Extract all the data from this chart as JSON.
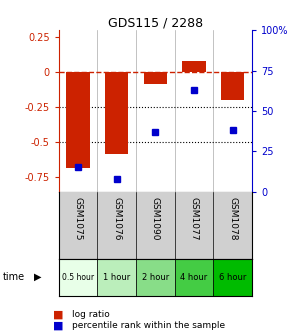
{
  "title": "GDS115 / 2288",
  "samples": [
    "GSM1075",
    "GSM1076",
    "GSM1090",
    "GSM1077",
    "GSM1078"
  ],
  "time_labels": [
    "0.5 hour",
    "1 hour",
    "2 hour",
    "4 hour",
    "6 hour"
  ],
  "time_colors": [
    "#e8ffe8",
    "#bbeebb",
    "#88dd88",
    "#44cc44",
    "#00bb00"
  ],
  "log_ratios": [
    -0.68,
    -0.58,
    -0.08,
    0.08,
    -0.2
  ],
  "percentiles": [
    15,
    8,
    37,
    63,
    38
  ],
  "bar_color": "#cc2200",
  "dot_color": "#0000cc",
  "ylim_left": [
    -0.85,
    0.3
  ],
  "ylim_right": [
    0,
    100
  ],
  "yticks_left": [
    0.25,
    0,
    -0.25,
    -0.5,
    -0.75
  ],
  "yticks_right": [
    100,
    75,
    50,
    25,
    0
  ],
  "dotted_lines": [
    -0.25,
    -0.5
  ],
  "sample_bg": "#d0d0d0",
  "plot_bg": "#ffffff",
  "legend_log": "log ratio",
  "legend_pct": "percentile rank within the sample",
  "bar_width": 0.6
}
